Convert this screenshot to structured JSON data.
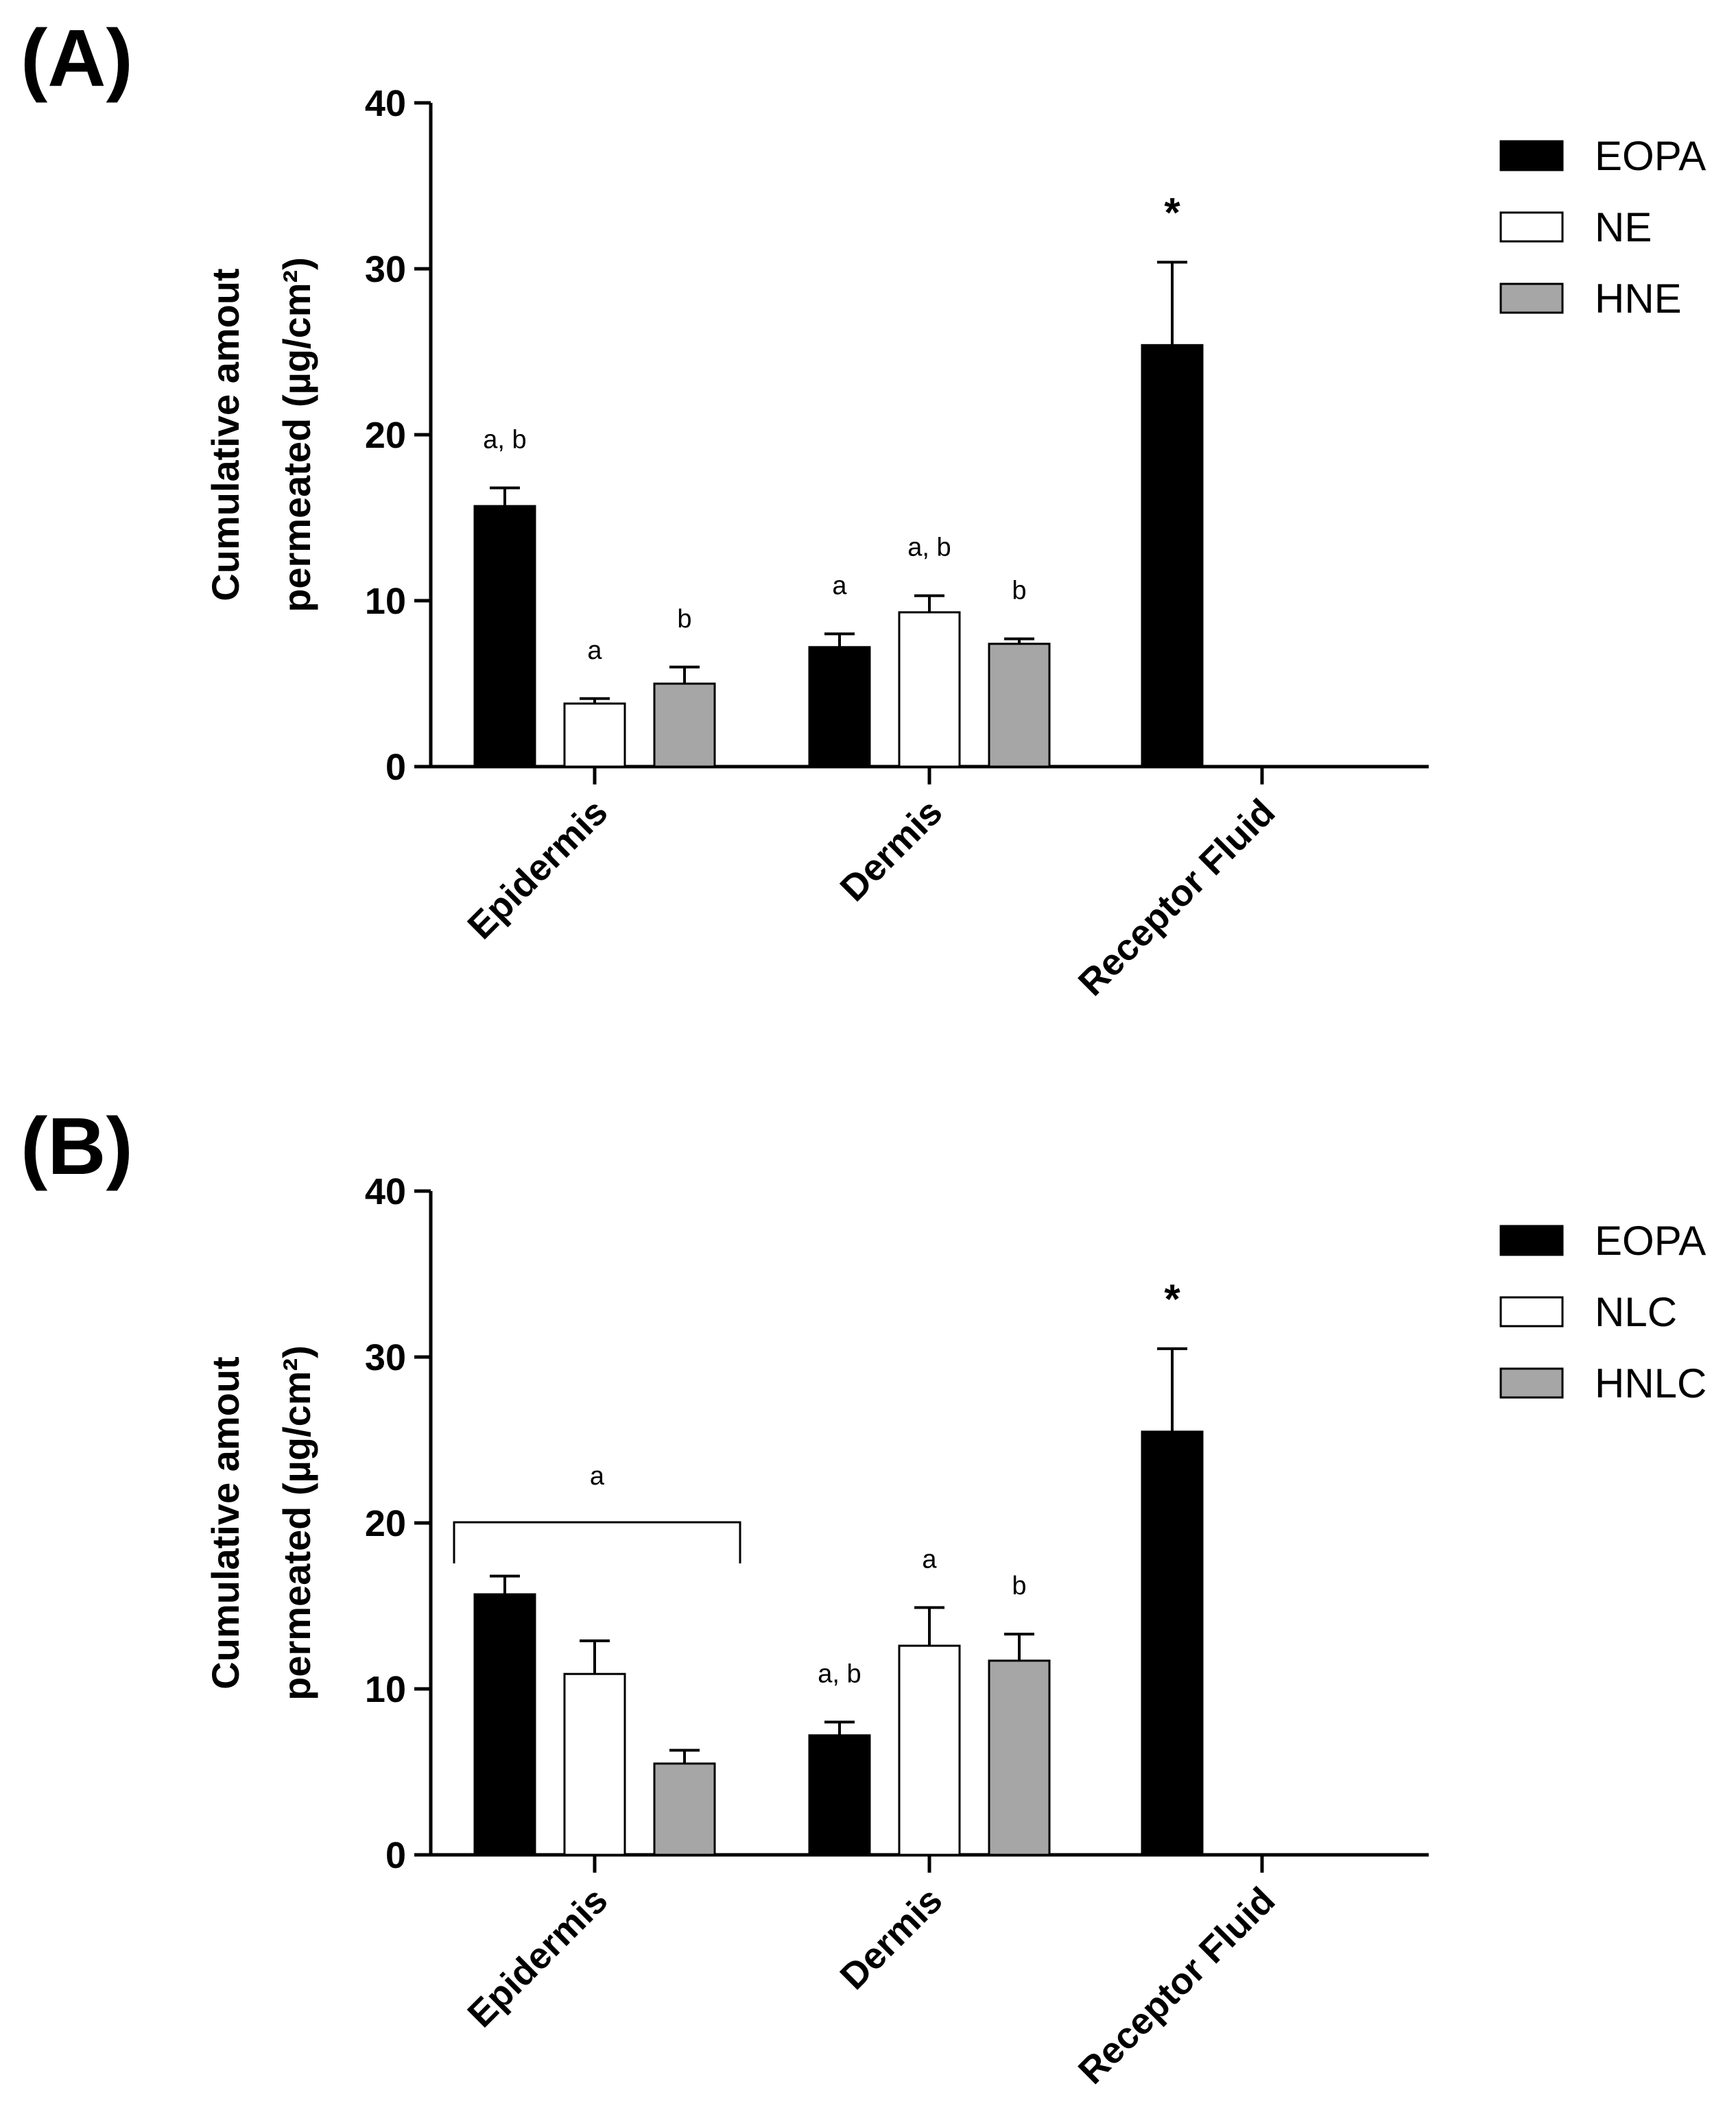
{
  "chart_data": [
    {
      "panel_label": "(A)",
      "type": "bar",
      "categories": [
        "Epidermis",
        "Dermis",
        "Receptor Fluid"
      ],
      "ylabel_line1": "Cumulative amout",
      "ylabel_line2": "permeated (µg/cm²)",
      "ylim": [
        0,
        40
      ],
      "yticks": [
        0,
        10,
        20,
        30,
        40
      ],
      "legend_position": "top-right",
      "series": [
        {
          "name": "EOPA",
          "color": "#000000",
          "values": [
            15.7,
            7.2,
            25.4
          ],
          "errors": [
            1.1,
            0.8,
            5.0
          ],
          "annotations": [
            "a, b",
            "a",
            "*"
          ]
        },
        {
          "name": "NE",
          "color": "#ffffff",
          "values": [
            3.8,
            9.3,
            null
          ],
          "errors": [
            0.3,
            1.0,
            null
          ],
          "annotations": [
            "a",
            "a, b",
            ""
          ]
        },
        {
          "name": "HNE",
          "color": "#a6a6a6",
          "values": [
            5.0,
            7.4,
            null
          ],
          "errors": [
            1.0,
            0.3,
            null
          ],
          "annotations": [
            "b",
            "b",
            ""
          ]
        }
      ]
    },
    {
      "panel_label": "(B)",
      "type": "bar",
      "categories": [
        "Epidermis",
        "Dermis",
        "Receptor Fluid"
      ],
      "ylabel_line1": "Cumulative amout",
      "ylabel_line2": "permeated (µg/cm²)",
      "ylim": [
        0,
        40
      ],
      "yticks": [
        0,
        10,
        20,
        30,
        40
      ],
      "legend_position": "top-right",
      "bracket_annotation": {
        "text": "a",
        "category": "Epidermis"
      },
      "series": [
        {
          "name": "EOPA",
          "color": "#000000",
          "values": [
            15.7,
            7.2,
            25.5
          ],
          "errors": [
            1.1,
            0.8,
            5.0
          ],
          "annotations": [
            "",
            "a, b",
            "*"
          ]
        },
        {
          "name": "NLC",
          "color": "#ffffff",
          "values": [
            10.9,
            12.6,
            null
          ],
          "errors": [
            2.0,
            2.3,
            null
          ],
          "annotations": [
            "",
            "a",
            ""
          ]
        },
        {
          "name": "HNLC",
          "color": "#a6a6a6",
          "values": [
            5.5,
            11.7,
            null
          ],
          "errors": [
            0.8,
            1.6,
            null
          ],
          "annotations": [
            "",
            "b",
            ""
          ]
        }
      ]
    }
  ]
}
